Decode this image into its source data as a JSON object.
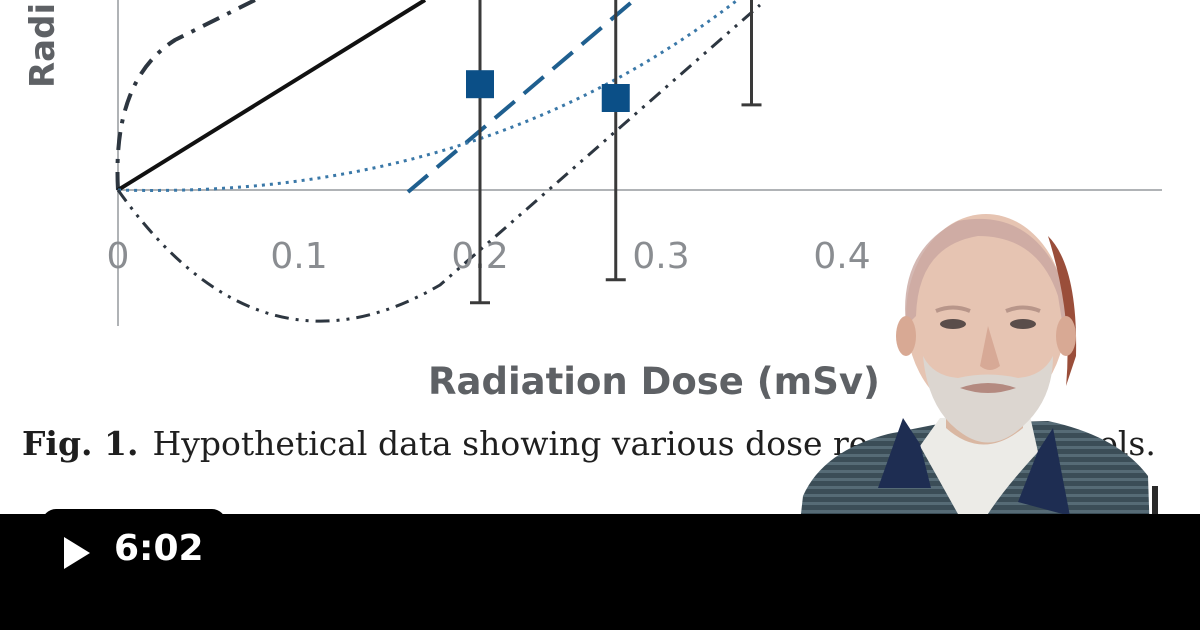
{
  "chart_data": {
    "type": "scatter",
    "ylabel": "Radi",
    "xlabel": "Radiation Dose (mSv)",
    "xlim": [
      0,
      0.48
    ],
    "xticks": [
      "0",
      "0.1",
      "0.2",
      "0.3",
      "0.4"
    ],
    "xtick_values": [
      0,
      0.1,
      0.2,
      0.3,
      0.4
    ],
    "points": [
      {
        "x": 0.2,
        "y": 0.92,
        "err_low": 0.98,
        "err_high": 1.7
      },
      {
        "x": 0.275,
        "y": 0.8,
        "err_low": 0.78,
        "err_high": 1.7
      }
    ],
    "error_bar_only": [
      {
        "x": 0.35,
        "err_low": 0.74,
        "err_high": 1.9
      }
    ],
    "grid": false,
    "colors": {
      "linear": "#111111",
      "threshold": "#1f5f8f",
      "quadratic": "#3a78a8",
      "hormesis": "#2d3640",
      "supralinear": "#2d3640",
      "marker": "#0b4f87",
      "axis": "#b0b3b6"
    }
  },
  "caption": {
    "label": "Fig. 1.",
    "text": "Hypothetical data showing various dose re",
    "text_tail": "els."
  },
  "player": {
    "duration": "6:02",
    "play_icon": "play-icon"
  },
  "presenter": {
    "icon": "presenter-webcam-overlay"
  }
}
